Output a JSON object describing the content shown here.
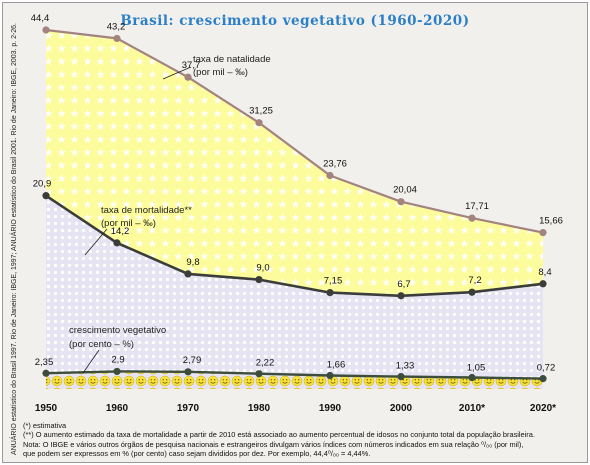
{
  "chart_data": {
    "type": "line",
    "title": "Brasil: crescimento vegetativo (1960-2020)",
    "categories": [
      "1950",
      "1960",
      "1970",
      "1980",
      "1990",
      "2000",
      "2010*",
      "2020*"
    ],
    "ylim": [
      0,
      46
    ],
    "grid": false,
    "series": [
      {
        "name": "taxa de natalidade",
        "unit": "(por mil – ‰)",
        "color": "#a2837f",
        "values": [
          44.4,
          43.2,
          37.7,
          31.25,
          23.76,
          20.04,
          17.71,
          15.66
        ],
        "labels": [
          "44,4",
          "43,2",
          "37,7",
          "31,25",
          "23,76",
          "20,04",
          "17,71",
          "15,66"
        ]
      },
      {
        "name": "taxa de mortalidade**",
        "unit": "(por mil – ‰)",
        "color": "#3a3d3a",
        "values": [
          20.9,
          14.2,
          9.8,
          9.0,
          7.15,
          6.7,
          7.2,
          8.4
        ],
        "labels": [
          "20,9",
          "14,2",
          "9,8",
          "9,0",
          "7,15",
          "6,7",
          "7,2",
          "8,4"
        ]
      },
      {
        "name": "crescimento vegetativo",
        "unit": "(por cento – %)",
        "color": "#3c4d3c",
        "values": [
          2.35,
          2.9,
          2.79,
          2.22,
          1.66,
          1.33,
          1.05,
          0.72
        ],
        "labels": [
          "2,35",
          "2,9",
          "2,79",
          "2,22",
          "1,66",
          "1,33",
          "1,05",
          "0,72"
        ]
      }
    ],
    "fills": {
      "birth_area": "#fdfc9c",
      "death_area": "#e6e4f2"
    }
  },
  "notes": [
    "(*) estimativa",
    "(**) O aumento estimado da taxa de mortalidade a partir de 2010 está associado ao aumento percentual de idosos no conjunto total da população brasileira.",
    "Nota: O IBGE e vários outros órgãos de pesquisa nacionais e estrangeiros divulgam vários índices com números indicados em sua relação ⁰/₀₀ (por mil),",
    "que podem ser expressos em % (por cento) caso sejam divididos por dez. Por exemplo, 44,4⁰/₀₀ = 4,44%."
  ],
  "source": "ANUÁRIO estatístico do Brasil 1997. Rio de Janeiro: IBGE, 1997; ANUÁRIO estatístico do Brasil 2001. Rio de Janeiro: IBGE, 2003. p. 2-26."
}
